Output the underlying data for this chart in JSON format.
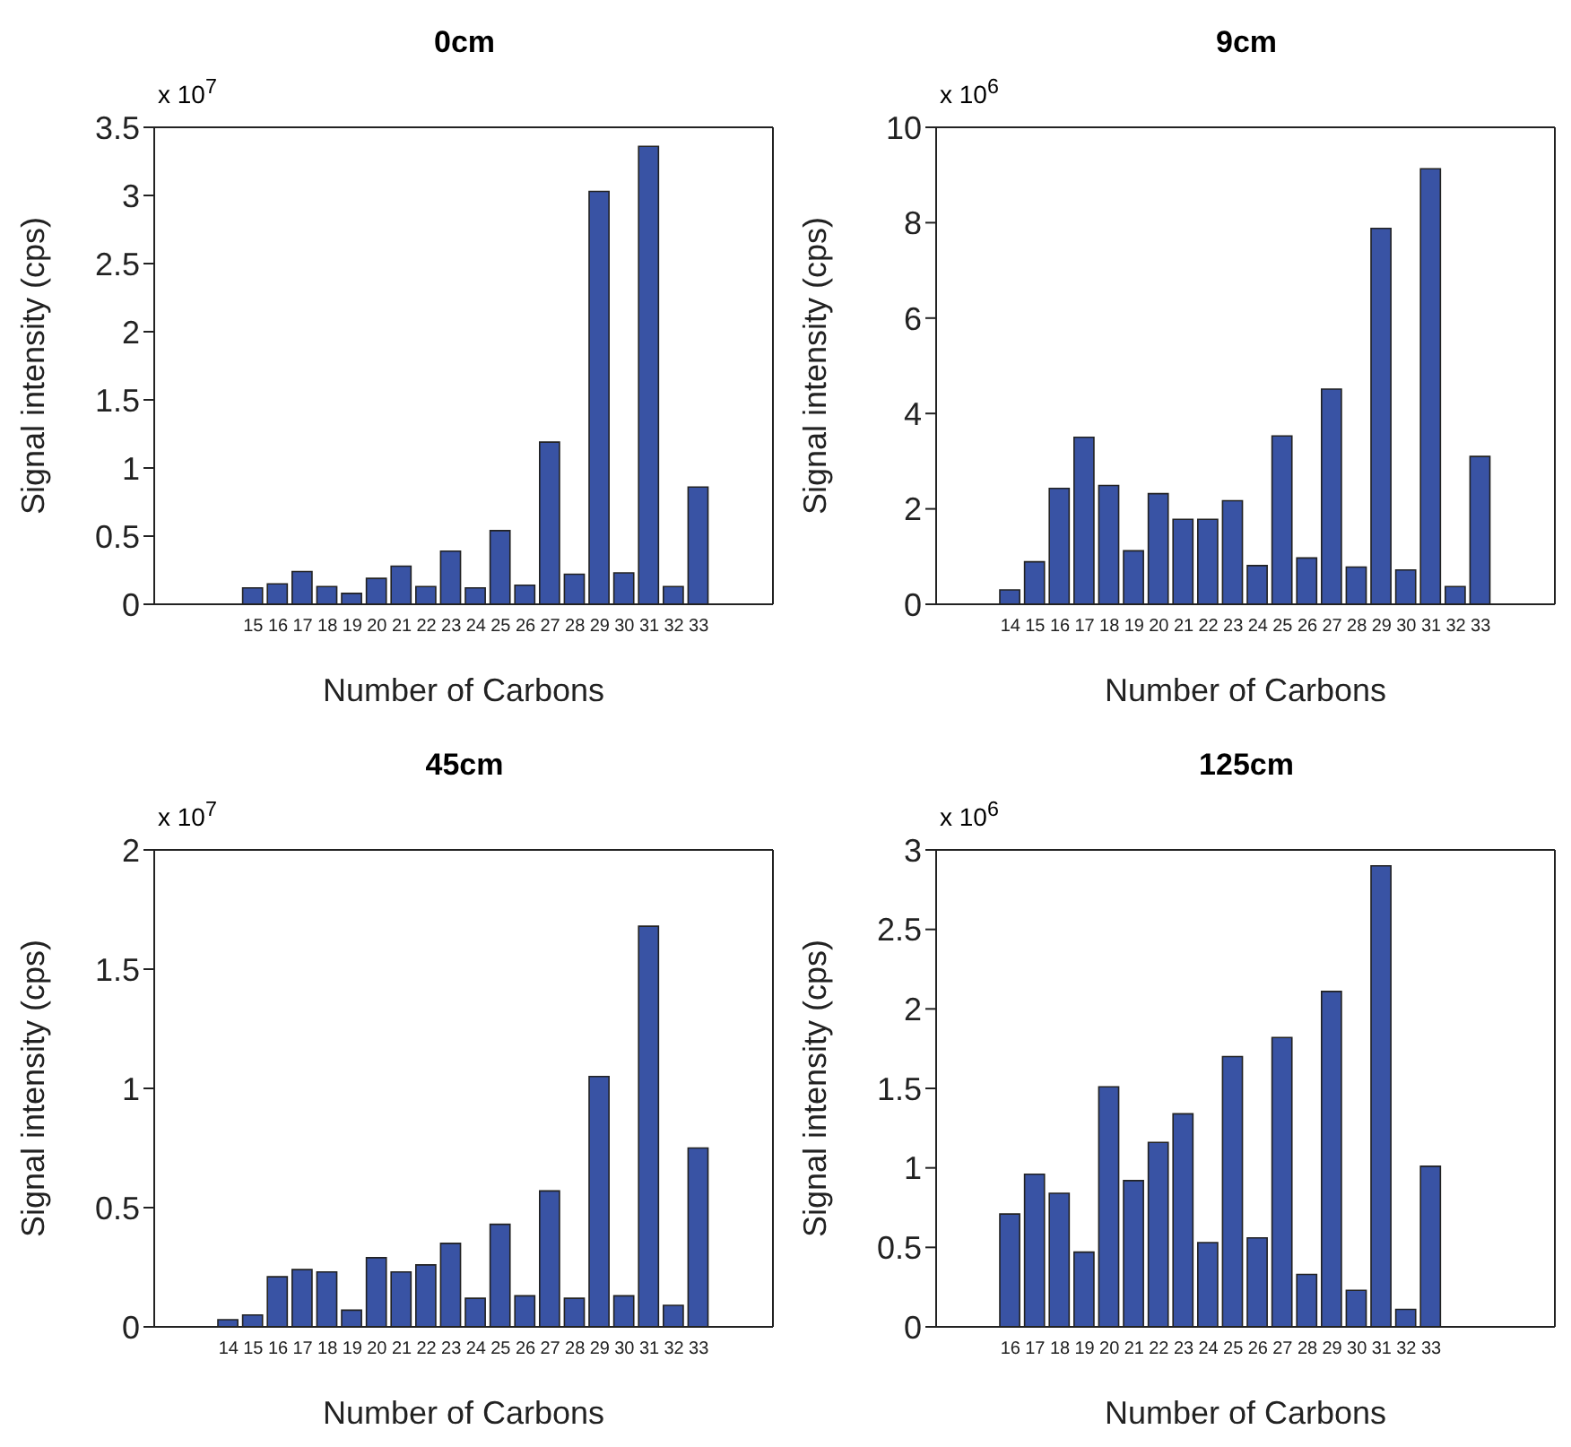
{
  "chart_data": [
    {
      "type": "bar",
      "title": "0cm",
      "xlabel": "Number of Carbons",
      "ylabel": "Signal intensity (cps)",
      "annotations": [
        "x 10$^{7}$"
      ],
      "color": "#3953a4",
      "x": [
        15,
        16,
        17,
        18,
        19,
        20,
        21,
        22,
        23,
        24,
        25,
        26,
        27,
        28,
        29,
        30,
        31,
        32,
        33
      ],
      "values": [
        0.12,
        0.15,
        0.24,
        0.13,
        0.08,
        0.19,
        0.28,
        0.13,
        0.39,
        0.12,
        0.54,
        0.14,
        1.19,
        0.22,
        3.03,
        0.23,
        3.36,
        0.13,
        0.86
      ],
      "xlim": [
        11,
        36
      ],
      "xticks": [
        15,
        16,
        17,
        18,
        19,
        20,
        21,
        22,
        23,
        24,
        25,
        26,
        27,
        28,
        29,
        30,
        31,
        32,
        33
      ],
      "ylim": [
        0,
        3.5
      ],
      "yticks": [
        0,
        0.5,
        1,
        1.5,
        2,
        2.5,
        3,
        3.5
      ],
      "grid": false,
      "legend": false
    },
    {
      "type": "bar",
      "title": "9cm",
      "xlabel": "Number of Carbons",
      "ylabel": "Signal intensity (cps)",
      "annotations": [
        "x 10$^{6}$"
      ],
      "color": "#3953a4",
      "x": [
        14,
        15,
        16,
        17,
        18,
        19,
        20,
        21,
        22,
        23,
        24,
        25,
        26,
        27,
        28,
        29,
        30,
        31,
        32,
        33
      ],
      "values": [
        0.3,
        0.89,
        2.43,
        3.5,
        2.49,
        1.12,
        2.32,
        1.78,
        1.78,
        2.17,
        0.81,
        3.53,
        0.97,
        4.51,
        0.78,
        7.88,
        0.72,
        9.13,
        0.37,
        3.1
      ],
      "xlim": [
        11,
        36
      ],
      "xticks": [
        14,
        15,
        16,
        17,
        18,
        19,
        20,
        21,
        22,
        23,
        24,
        25,
        26,
        27,
        28,
        29,
        30,
        31,
        32,
        33
      ],
      "ylim": [
        0,
        10
      ],
      "yticks": [
        0,
        2,
        4,
        6,
        8,
        10
      ],
      "grid": false,
      "legend": false
    },
    {
      "type": "bar",
      "title": "45cm",
      "xlabel": "Number of Carbons",
      "ylabel": "Signal intensity (cps)",
      "annotations": [
        "x 10$^{7}$"
      ],
      "color": "#3953a4",
      "x": [
        14,
        15,
        16,
        17,
        18,
        19,
        20,
        21,
        22,
        23,
        24,
        25,
        26,
        27,
        28,
        29,
        30,
        31,
        32,
        33
      ],
      "values": [
        0.03,
        0.05,
        0.21,
        0.24,
        0.23,
        0.07,
        0.29,
        0.23,
        0.26,
        0.35,
        0.12,
        0.43,
        0.13,
        0.57,
        0.12,
        1.05,
        0.13,
        1.68,
        0.09,
        0.75
      ],
      "xlim": [
        11,
        36
      ],
      "xticks": [
        14,
        15,
        16,
        17,
        18,
        19,
        20,
        21,
        22,
        23,
        24,
        25,
        26,
        27,
        28,
        29,
        30,
        31,
        32,
        33
      ],
      "ylim": [
        0,
        2
      ],
      "yticks": [
        0,
        0.5,
        1,
        1.5,
        2
      ],
      "grid": false,
      "legend": false
    },
    {
      "type": "bar",
      "title": "125cm",
      "xlabel": "Number of Carbons",
      "ylabel": "Signal intensity (cps)",
      "annotations": [
        "x 10$^{6}$"
      ],
      "color": "#3953a4",
      "x": [
        16,
        17,
        18,
        19,
        20,
        21,
        22,
        23,
        24,
        25,
        26,
        27,
        28,
        29,
        30,
        31,
        32,
        33
      ],
      "values": [
        0.71,
        0.96,
        0.84,
        0.47,
        1.51,
        0.92,
        1.16,
        1.34,
        0.53,
        1.7,
        0.56,
        1.82,
        0.33,
        2.11,
        0.23,
        2.9,
        0.11,
        1.01
      ],
      "xlim": [
        13,
        38
      ],
      "xticks": [
        16,
        17,
        18,
        19,
        20,
        21,
        22,
        23,
        24,
        25,
        26,
        27,
        28,
        29,
        30,
        31,
        32,
        33
      ],
      "ylim": [
        0,
        3
      ],
      "yticks": [
        0,
        0.5,
        1,
        1.5,
        2,
        2.5,
        3
      ],
      "grid": false,
      "legend": false
    }
  ]
}
